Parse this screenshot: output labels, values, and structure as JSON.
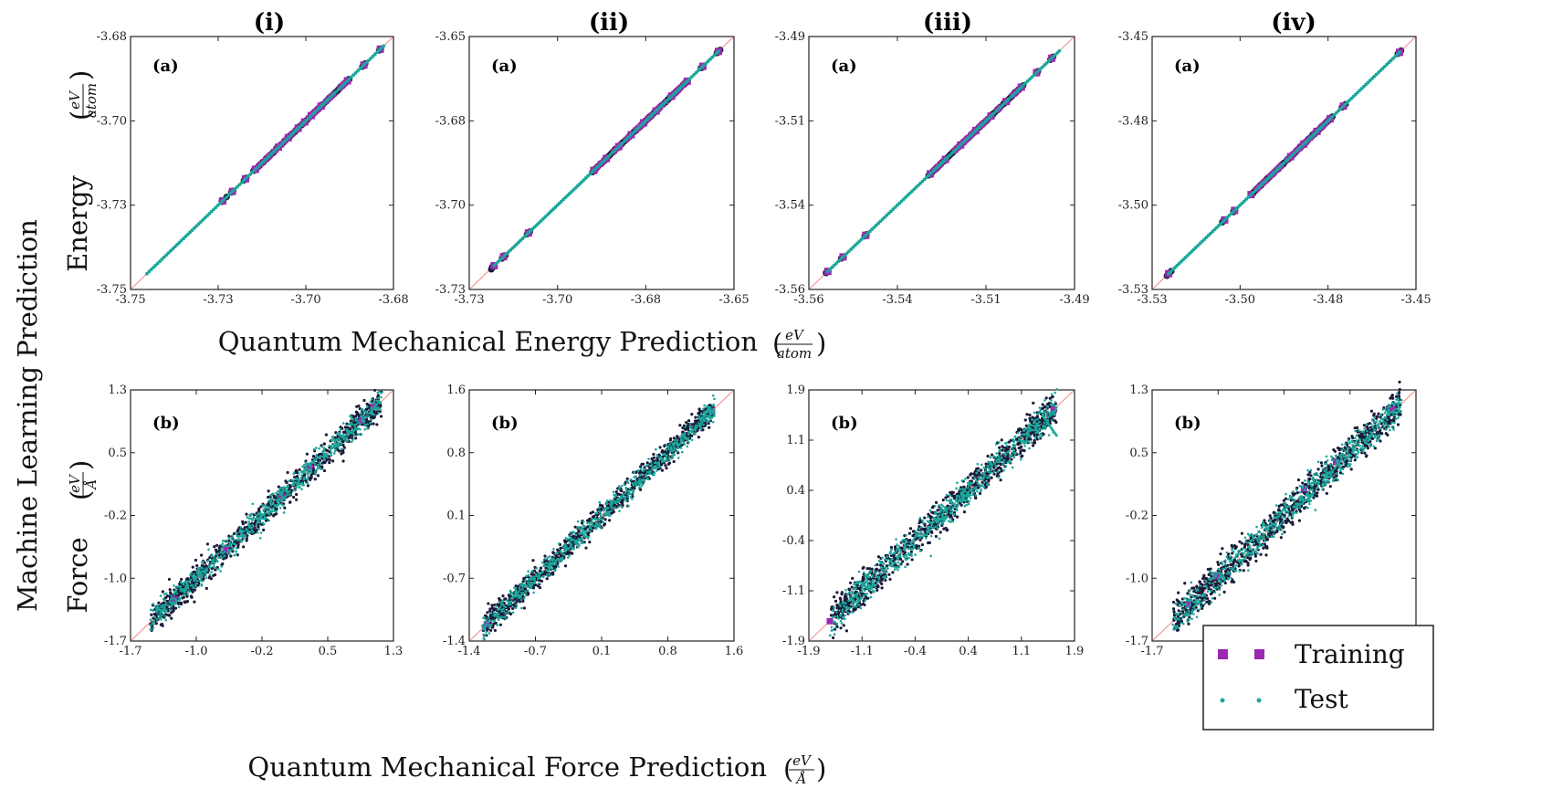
{
  "figure": {
    "ylabel_main": "Machine Learning Prediction",
    "row_labels": [
      "Energy",
      "Force"
    ],
    "xlabel_energy": "Quantum Mechanical Energy Prediction",
    "xlabel_force": "Quantum Mechanical Force Prediction",
    "unit_energy": {
      "num": "eV",
      "den": "atom"
    },
    "unit_force": {
      "num": "eV",
      "den": "Å"
    },
    "legend": [
      {
        "label": "Training",
        "color": "#9c27b0",
        "marker": "square"
      },
      {
        "label": "Test",
        "color": "#1aa79a",
        "marker": "dot"
      }
    ],
    "colors": {
      "training": "#9c27b0",
      "test": "#1aa79a",
      "dense": "#1a1a3a",
      "diagonal": "#f4a0a0"
    }
  },
  "chart_data": [
    {
      "type": "scatter",
      "row": "energy",
      "column_title": "(i)",
      "panel_label": "(a)",
      "xlim": [
        -3.75,
        -3.67
      ],
      "ylim": [
        -3.75,
        -3.67
      ],
      "xticks": [
        "-3.75",
        "-3.73",
        "-3.70",
        "-3.68"
      ],
      "yticks": [
        "-3.75",
        "-3.73",
        "-3.70",
        "-3.68"
      ],
      "series": [
        {
          "name": "Training",
          "x": [
            -3.722,
            -3.719,
            -3.715,
            -3.712,
            -3.705,
            -3.702,
            -3.699,
            -3.697,
            -3.695,
            -3.692,
            -3.684,
            -3.679,
            -3.674
          ],
          "y": [
            -3.722,
            -3.719,
            -3.715,
            -3.712,
            -3.705,
            -3.702,
            -3.699,
            -3.697,
            -3.695,
            -3.692,
            -3.684,
            -3.679,
            -3.674
          ]
        },
        {
          "name": "Test",
          "x_range": [
            -3.745,
            -3.673
          ]
        }
      ]
    },
    {
      "type": "scatter",
      "row": "energy",
      "column_title": "(ii)",
      "panel_label": "(a)",
      "xlim": [
        -3.73,
        -3.645
      ],
      "ylim": [
        -3.73,
        -3.645
      ],
      "xticks": [
        "-3.73",
        "-3.70",
        "-3.68",
        "-3.65"
      ],
      "yticks": [
        "-3.73",
        "-3.70",
        "-3.68",
        "-3.65"
      ],
      "series": [
        {
          "name": "Training",
          "x": [
            -3.722,
            -3.719,
            -3.711,
            -3.69,
            -3.686,
            -3.682,
            -3.678,
            -3.674,
            -3.67,
            -3.665,
            -3.66,
            -3.655,
            -3.65
          ],
          "y": [
            -3.722,
            -3.719,
            -3.711,
            -3.69,
            -3.686,
            -3.682,
            -3.678,
            -3.674,
            -3.67,
            -3.665,
            -3.66,
            -3.655,
            -3.65
          ]
        },
        {
          "name": "Test",
          "x_range": [
            -3.722,
            -3.65
          ]
        }
      ]
    },
    {
      "type": "scatter",
      "row": "energy",
      "column_title": "(iii)",
      "panel_label": "(a)",
      "xlim": [
        -3.56,
        -3.49
      ],
      "ylim": [
        -3.56,
        -3.49
      ],
      "xticks": [
        "-3.56",
        "-3.54",
        "-3.51",
        "-3.49"
      ],
      "yticks": [
        "-3.56",
        "-3.54",
        "-3.51",
        "-3.49"
      ],
      "series": [
        {
          "name": "Training",
          "x": [
            -3.555,
            -3.551,
            -3.545,
            -3.528,
            -3.524,
            -3.52,
            -3.516,
            -3.512,
            -3.508,
            -3.504,
            -3.5,
            -3.496
          ],
          "y": [
            -3.555,
            -3.551,
            -3.545,
            -3.528,
            -3.524,
            -3.52,
            -3.516,
            -3.512,
            -3.508,
            -3.504,
            -3.5,
            -3.496
          ]
        },
        {
          "name": "Test",
          "x_range": [
            -3.555,
            -3.494
          ]
        }
      ]
    },
    {
      "type": "scatter",
      "row": "energy",
      "column_title": "(iv)",
      "panel_label": "(a)",
      "xlim": [
        -3.53,
        -3.45
      ],
      "ylim": [
        -3.53,
        -3.45
      ],
      "xticks": [
        "-3.53",
        "-3.50",
        "-3.48",
        "-3.45"
      ],
      "yticks": [
        "-3.53",
        "-3.50",
        "-3.48",
        "-3.45"
      ],
      "series": [
        {
          "name": "Training",
          "x": [
            -3.525,
            -3.508,
            -3.505,
            -3.5,
            -3.488,
            -3.484,
            -3.48,
            -3.476,
            -3.472,
            -3.455
          ],
          "y": [
            -3.525,
            -3.508,
            -3.505,
            -3.5,
            -3.488,
            -3.484,
            -3.48,
            -3.476,
            -3.472,
            -3.455
          ]
        },
        {
          "name": "Test",
          "x_range": [
            -3.525,
            -3.455
          ]
        }
      ]
    },
    {
      "type": "scatter",
      "row": "force",
      "column_title": "(i)",
      "panel_label": "(b)",
      "xlim": [
        -1.7,
        1.6
      ],
      "ylim": [
        -1.7,
        1.6
      ],
      "xticks": [
        "-1.7",
        "-1.0",
        "-0.2",
        "0.5",
        "1.3"
      ],
      "yticks": [
        "-1.7",
        "-1.0",
        "-0.2",
        "0.5",
        "1.3"
      ],
      "series": [
        {
          "name": "Training",
          "x": [
            -1.15,
            -0.5,
            0.2,
            0.55,
            1.2,
            1.35
          ],
          "y": [
            -1.15,
            -0.5,
            0.2,
            0.6,
            1.2,
            1.38
          ]
        },
        {
          "name": "Test",
          "x_range": [
            -1.45,
            1.45
          ],
          "spread": 0.09
        }
      ]
    },
    {
      "type": "scatter",
      "row": "force",
      "column_title": "(ii)",
      "panel_label": "(b)",
      "xlim": [
        -1.4,
        1.6
      ],
      "ylim": [
        -1.4,
        1.6
      ],
      "xticks": [
        "-1.4",
        "-0.7",
        "0.1",
        "0.8",
        "1.6"
      ],
      "yticks": [
        "-1.4",
        "-0.7",
        "0.1",
        "0.8",
        "1.6"
      ],
      "series": [
        {
          "name": "Training",
          "x": [
            -1.2,
            1.35
          ],
          "y": [
            -1.2,
            1.35
          ]
        },
        {
          "name": "Test",
          "x_range": [
            -1.25,
            1.38
          ],
          "spread": 0.07
        }
      ]
    },
    {
      "type": "scatter",
      "row": "force",
      "column_title": "(iii)",
      "panel_label": "(b)",
      "xlim": [
        -1.9,
        1.9
      ],
      "ylim": [
        -1.9,
        1.9
      ],
      "xticks": [
        "-1.9",
        "-1.1",
        "-0.4",
        "0.4",
        "1.1",
        "1.9"
      ],
      "yticks": [
        "-1.9",
        "-1.1",
        "-0.4",
        "0.4",
        "1.1",
        "1.9"
      ],
      "series": [
        {
          "name": "Training",
          "x": [
            -1.6,
            1.6
          ],
          "y": [
            -1.6,
            1.6
          ]
        },
        {
          "name": "Test",
          "x_range": [
            -1.6,
            1.65
          ],
          "spread": 0.12
        }
      ]
    },
    {
      "type": "scatter",
      "row": "force",
      "column_title": "(iv)",
      "panel_label": "(b)",
      "xlim": [
        -1.7,
        1.6
      ],
      "ylim": [
        -1.7,
        1.6
      ],
      "xticks": [
        "-1.7",
        "-1.0",
        "-0.2",
        "0.5",
        "1.3"
      ],
      "yticks": [
        "-1.7",
        "-1.0",
        "-0.2",
        "0.5",
        "1.3"
      ],
      "series": [
        {
          "name": "Training",
          "x": [
            -1.25,
            -0.9,
            0.2,
            0.6,
            1.3
          ],
          "y": [
            -1.22,
            -0.85,
            0.3,
            0.65,
            1.35
          ]
        },
        {
          "name": "Test",
          "x_range": [
            -1.45,
            1.42
          ],
          "spread": 0.11
        }
      ]
    }
  ]
}
